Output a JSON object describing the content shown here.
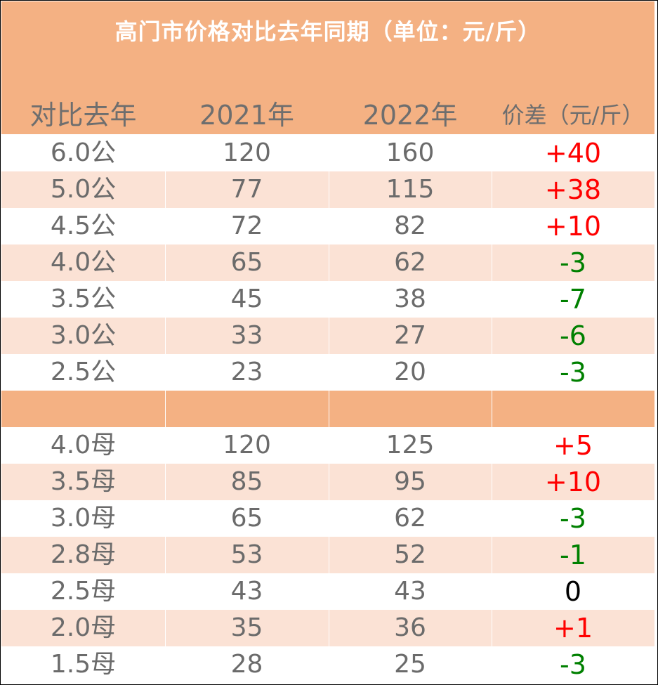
{
  "title": "高门市价格对比去年同期（单位：元/斤）",
  "headers": [
    "对比去年",
    "2021年",
    "2022年",
    "价差（元/斤）"
  ],
  "colors": {
    "header_bg": "#f4b183",
    "row_alt": "#fbe2d5",
    "positive": "#ff0000",
    "negative": "#008000",
    "zero": "#000000",
    "text": "#6b6b6b"
  },
  "rows_gong": [
    {
      "size": "6.0公",
      "y2021": "120",
      "y2022": "160",
      "diff": "+40"
    },
    {
      "size": "5.0公",
      "y2021": "77",
      "y2022": "115",
      "diff": "+38"
    },
    {
      "size": "4.5公",
      "y2021": "72",
      "y2022": "82",
      "diff": "+10"
    },
    {
      "size": "4.0公",
      "y2021": "65",
      "y2022": "62",
      "diff": "-3"
    },
    {
      "size": "3.5公",
      "y2021": "45",
      "y2022": "38",
      "diff": "-7"
    },
    {
      "size": "3.0公",
      "y2021": "33",
      "y2022": "27",
      "diff": "-6"
    },
    {
      "size": "2.5公",
      "y2021": "23",
      "y2022": "20",
      "diff": "-3"
    }
  ],
  "rows_mu": [
    {
      "size": "4.0母",
      "y2021": "120",
      "y2022": "125",
      "diff": "+5"
    },
    {
      "size": "3.5母",
      "y2021": "85",
      "y2022": "95",
      "diff": "+10"
    },
    {
      "size": "3.0母",
      "y2021": "65",
      "y2022": "62",
      "diff": "-3"
    },
    {
      "size": "2.8母",
      "y2021": "53",
      "y2022": "52",
      "diff": "-1"
    },
    {
      "size": "2.5母",
      "y2021": "43",
      "y2022": "43",
      "diff": "0"
    },
    {
      "size": "2.0母",
      "y2021": "35",
      "y2022": "36",
      "diff": "+1"
    },
    {
      "size": "1.5母",
      "y2021": "28",
      "y2022": "25",
      "diff": "-3"
    }
  ]
}
